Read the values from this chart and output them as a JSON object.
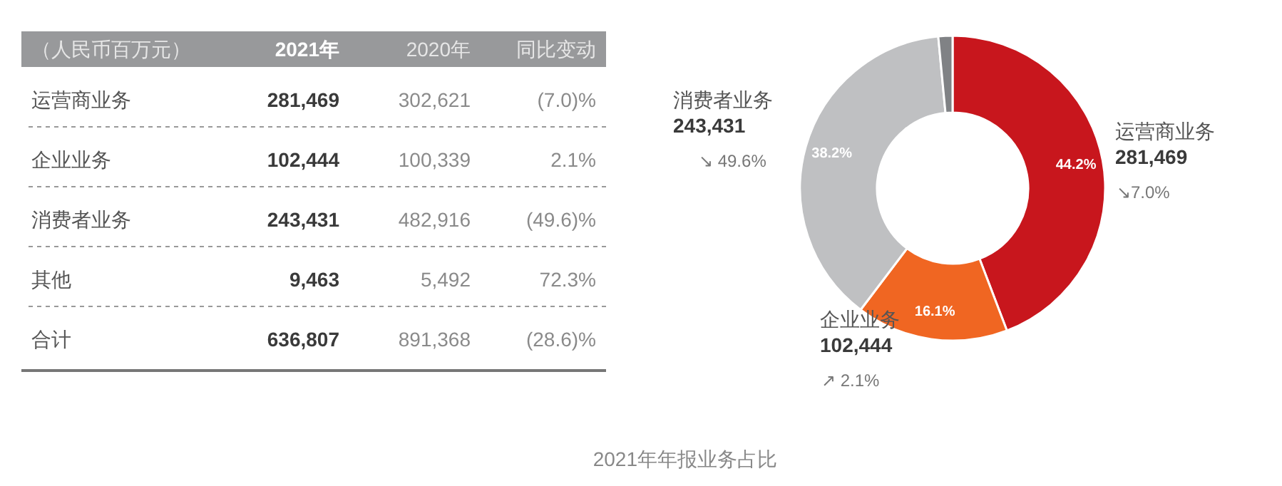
{
  "chart_data": [
    {
      "type": "other",
      "annotations": [
        "（人民币百万元）",
        "2021年",
        "2020年",
        "同比变动",
        "运营商业务",
        "281,469",
        "302,621",
        "(7.0)%",
        "企业业务",
        "102,444",
        "100,339",
        "2.1%",
        "消费者业务",
        "243,431",
        "482,916",
        "(49.6)%",
        "其他",
        "9,463",
        "5,492",
        "72.3%",
        "合计",
        "636,807",
        "891,368",
        "(28.6)%"
      ]
    },
    {
      "type": "donut",
      "title": "2021年年报业务占比",
      "categories": [
        "运营商业务",
        "企业业务",
        "消费者业务",
        null
      ],
      "values": [
        44.2,
        16.1,
        38.2,
        1.5
      ],
      "colors": [
        "#c8161d",
        "#f06622",
        "#bfc0c2",
        "#808285"
      ],
      "value_labels": [
        "44.2%",
        "16.1%",
        "38.2%",
        null
      ],
      "annotations": [
        "281,469",
        "↘7.0%",
        "102,444",
        "↗ 2.1%",
        "243,431",
        "↘ 49.6%"
      ]
    }
  ]
}
